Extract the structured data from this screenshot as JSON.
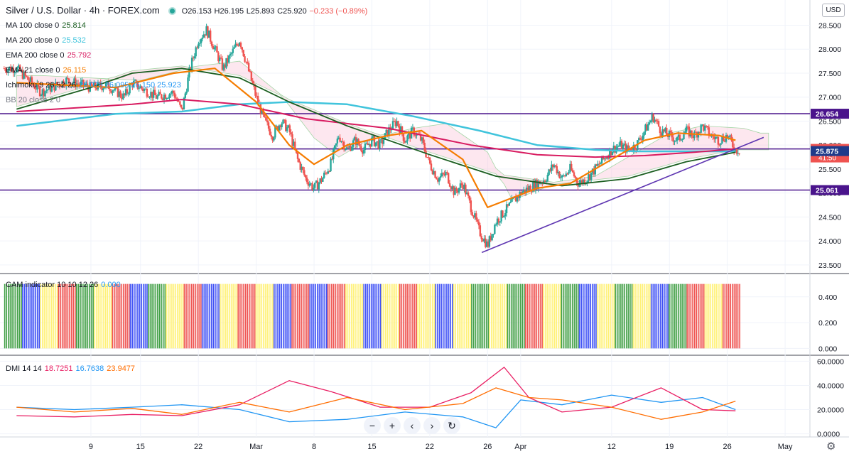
{
  "header": {
    "title": "Silver / U.S. Dollar · 4h · FOREX.com",
    "open": "O26.153",
    "high": "H26.195",
    "low": "L25.893",
    "close": "C25.920",
    "change": "−0.233 (−0.89%)",
    "currency_button": "USD"
  },
  "legend": [
    {
      "label": "MA 100 close 0",
      "value": "25.814",
      "color": "#1b5e20"
    },
    {
      "label": "MA 200 close 0",
      "value": "25.532",
      "color": "#40c4dc"
    },
    {
      "label": "EMA 200 close 0",
      "value": "25.792",
      "color": "#d81b60"
    },
    {
      "label": "EMA 21 close 0",
      "value": "26.115",
      "color": "#f57c00"
    },
    {
      "label": "Ichimoku 9 26 52 26",
      "value": "26.078  26.095  26.150  25.923",
      "color": "#2196f3"
    },
    {
      "label": "BB 20 close 2 0",
      "value": "",
      "color": "#787b86"
    }
  ],
  "cam_label": {
    "text": "CAM indicator 10 10 12 26",
    "value": "0.000"
  },
  "dmi_label": {
    "text": "DMI 14 14",
    "values": [
      "18.7251",
      "16.7638",
      "23.9477"
    ],
    "colors": [
      "#e91e63",
      "#2196f3",
      "#ff6d00"
    ]
  },
  "toolbar": [
    "−",
    "+",
    "‹",
    "›",
    "↻"
  ],
  "chart_data": {
    "type": "candlestick",
    "instrument": "Silver / U.S. Dollar",
    "timeframe": "4h",
    "main_axis": {
      "ticks": [
        "28.500",
        "28.000",
        "27.500",
        "27.000",
        "26.500",
        "26.000",
        "25.500",
        "25.000",
        "24.500",
        "24.000",
        "23.500"
      ],
      "ylim": [
        23.35,
        28.7
      ]
    },
    "price_labels": [
      {
        "value": "26.654",
        "color": "#4a148c"
      },
      {
        "value": "25.920",
        "color": "#ef5350",
        "note": "41:50"
      },
      {
        "value": "25.875",
        "color": "#1e3a8a"
      },
      {
        "value": "25.061",
        "color": "#4a148c"
      }
    ],
    "horizontal_levels": [
      26.654,
      25.92,
      25.061
    ],
    "x_labels": [
      "9",
      "15",
      "22",
      "Mar",
      "8",
      "15",
      "22",
      "26",
      "Apr",
      "12",
      "19",
      "26",
      "May"
    ],
    "x_label_days": [
      9,
      15,
      22,
      29,
      36,
      43,
      50,
      57,
      61,
      72,
      79,
      86,
      93
    ],
    "trendline": {
      "from": {
        "day": 56.3,
        "value": 23.76
      },
      "to": {
        "day": 90.4,
        "value": 26.16
      }
    },
    "candles_close_path": [
      [
        0,
        27.6
      ],
      [
        3,
        27.1
      ],
      [
        6,
        27.35
      ],
      [
        9,
        27.2
      ],
      [
        11,
        27.25
      ],
      [
        13,
        27.0
      ],
      [
        14,
        27.3
      ],
      [
        15,
        27.2
      ],
      [
        17,
        27.0
      ],
      [
        19,
        27.1
      ],
      [
        20,
        26.7
      ],
      [
        21,
        27.6
      ],
      [
        22,
        28.2
      ],
      [
        23,
        28.4
      ],
      [
        24,
        28.0
      ],
      [
        25,
        27.6
      ],
      [
        26,
        27.9
      ],
      [
        27,
        28.2
      ],
      [
        28,
        27.6
      ],
      [
        29,
        27.0
      ],
      [
        30,
        26.5
      ],
      [
        31,
        26.2
      ],
      [
        32,
        26.5
      ],
      [
        33,
        26.3
      ],
      [
        34,
        25.7
      ],
      [
        35,
        25.3
      ],
      [
        36,
        25.1
      ],
      [
        37,
        25.3
      ],
      [
        38,
        25.6
      ],
      [
        39,
        26.2
      ],
      [
        40,
        25.9
      ],
      [
        41,
        26.1
      ],
      [
        42,
        25.9
      ],
      [
        43,
        26.1
      ],
      [
        44,
        26.0
      ],
      [
        45,
        26.3
      ],
      [
        46,
        26.5
      ],
      [
        47,
        26.1
      ],
      [
        48,
        26.3
      ],
      [
        49,
        26.1
      ],
      [
        50,
        25.6
      ],
      [
        51,
        25.3
      ],
      [
        52,
        25.4
      ],
      [
        53,
        25.0
      ],
      [
        54,
        25.2
      ],
      [
        55,
        24.7
      ],
      [
        56,
        24.2
      ],
      [
        57,
        23.9
      ],
      [
        58,
        24.4
      ],
      [
        59,
        24.6
      ],
      [
        60,
        24.8
      ],
      [
        61,
        25.0
      ],
      [
        62,
        25.1
      ],
      [
        63,
        25.2
      ],
      [
        64,
        25.3
      ],
      [
        65,
        25.6
      ],
      [
        66,
        25.3
      ],
      [
        67,
        25.5
      ],
      [
        68,
        25.2
      ],
      [
        69,
        25.3
      ],
      [
        70,
        25.5
      ],
      [
        71,
        25.7
      ],
      [
        72,
        25.9
      ],
      [
        73,
        26.0
      ],
      [
        74,
        25.9
      ],
      [
        75,
        26.0
      ],
      [
        76,
        26.3
      ],
      [
        77,
        26.6
      ],
      [
        78,
        26.3
      ],
      [
        79,
        26.2
      ],
      [
        80,
        26.1
      ],
      [
        81,
        26.3
      ],
      [
        82,
        26.2
      ],
      [
        83,
        26.4
      ],
      [
        84,
        26.2
      ],
      [
        85,
        26.1
      ],
      [
        86,
        26.2
      ],
      [
        87,
        25.9
      ]
    ],
    "ma100_path": [
      [
        0,
        26.75
      ],
      [
        9,
        27.2
      ],
      [
        14,
        27.5
      ],
      [
        20,
        27.6
      ],
      [
        27,
        27.4
      ],
      [
        33,
        26.9
      ],
      [
        40,
        26.4
      ],
      [
        50,
        25.8
      ],
      [
        58,
        25.35
      ],
      [
        66,
        25.15
      ],
      [
        74,
        25.3
      ],
      [
        81,
        25.65
      ],
      [
        87,
        25.85
      ]
    ],
    "ma200_path": [
      [
        0,
        26.4
      ],
      [
        12,
        26.65
      ],
      [
        20,
        26.7
      ],
      [
        27,
        26.85
      ],
      [
        33,
        26.9
      ],
      [
        40,
        26.85
      ],
      [
        48,
        26.6
      ],
      [
        56,
        26.3
      ],
      [
        63,
        26.0
      ],
      [
        70,
        25.9
      ],
      [
        75,
        25.87
      ],
      [
        87,
        25.87
      ]
    ],
    "ema200_path": [
      [
        0,
        26.7
      ],
      [
        14,
        26.85
      ],
      [
        20,
        26.95
      ],
      [
        27,
        26.85
      ],
      [
        35,
        26.55
      ],
      [
        45,
        26.35
      ],
      [
        55,
        26.0
      ],
      [
        63,
        25.8
      ],
      [
        70,
        25.75
      ],
      [
        76,
        25.78
      ],
      [
        82,
        25.85
      ],
      [
        87,
        25.92
      ]
    ],
    "ema21_path": [
      [
        0,
        27.3
      ],
      [
        12,
        27.2
      ],
      [
        19,
        27.5
      ],
      [
        24,
        27.6
      ],
      [
        29,
        26.9
      ],
      [
        33,
        26.0
      ],
      [
        36,
        25.6
      ],
      [
        40,
        26.0
      ],
      [
        45,
        26.2
      ],
      [
        49,
        26.3
      ],
      [
        54,
        25.7
      ],
      [
        57,
        24.7
      ],
      [
        60,
        24.9
      ],
      [
        63,
        25.1
      ],
      [
        67,
        25.2
      ],
      [
        72,
        25.7
      ],
      [
        76,
        26.1
      ],
      [
        80,
        26.25
      ],
      [
        85,
        26.2
      ],
      [
        87,
        26.1
      ]
    ],
    "cam_axis": {
      "ticks": [
        "0.400",
        "0.200",
        "0.000"
      ],
      "ylim": [
        -0.02,
        0.52
      ]
    },
    "cam_bars_colors_sequence": [
      "green",
      "blue",
      "yellow",
      "red",
      "green",
      "yellow",
      "red",
      "blue",
      "green",
      "yellow",
      "red",
      "blue",
      "yellow",
      "red",
      "yellow",
      "blue",
      "red",
      "blue",
      "red",
      "yellow",
      "blue",
      "yellow",
      "red",
      "yellow",
      "blue",
      "yellow",
      "green",
      "yellow",
      "green",
      "red",
      "yellow",
      "green",
      "blue",
      "yellow",
      "green",
      "yellow",
      "blue",
      "green",
      "red",
      "yellow",
      "red"
    ],
    "dmi_axis": {
      "ticks": [
        "60.0000",
        "40.0000",
        "20.0000",
        "0.0000"
      ],
      "ylim": [
        -2,
        62
      ]
    },
    "dmi_series": [
      {
        "name": "+DI",
        "color": "#2196f3",
        "path": [
          [
            0,
            22
          ],
          [
            7,
            20
          ],
          [
            14,
            22
          ],
          [
            20,
            24
          ],
          [
            27,
            20
          ],
          [
            33,
            10
          ],
          [
            40,
            12
          ],
          [
            47,
            18
          ],
          [
            54,
            14
          ],
          [
            58,
            5
          ],
          [
            61,
            28
          ],
          [
            66,
            24
          ],
          [
            72,
            32
          ],
          [
            78,
            26
          ],
          [
            83,
            30
          ],
          [
            87,
            20
          ]
        ]
      },
      {
        "name": "-DI",
        "color": "#e91e63",
        "path": [
          [
            0,
            15
          ],
          [
            7,
            14
          ],
          [
            14,
            16
          ],
          [
            20,
            15
          ],
          [
            27,
            24
          ],
          [
            33,
            44
          ],
          [
            38,
            35
          ],
          [
            44,
            22
          ],
          [
            50,
            22
          ],
          [
            55,
            34
          ],
          [
            59,
            55
          ],
          [
            62,
            30
          ],
          [
            66,
            18
          ],
          [
            72,
            22
          ],
          [
            78,
            38
          ],
          [
            83,
            20
          ],
          [
            87,
            19
          ]
        ]
      },
      {
        "name": "ADX",
        "color": "#ff6d00",
        "path": [
          [
            0,
            22
          ],
          [
            7,
            18
          ],
          [
            14,
            21
          ],
          [
            20,
            16
          ],
          [
            27,
            26
          ],
          [
            33,
            18
          ],
          [
            40,
            30
          ],
          [
            47,
            20
          ],
          [
            54,
            25
          ],
          [
            58,
            38
          ],
          [
            62,
            30
          ],
          [
            66,
            28
          ],
          [
            72,
            22
          ],
          [
            78,
            12
          ],
          [
            83,
            18
          ],
          [
            87,
            27
          ]
        ]
      }
    ]
  }
}
